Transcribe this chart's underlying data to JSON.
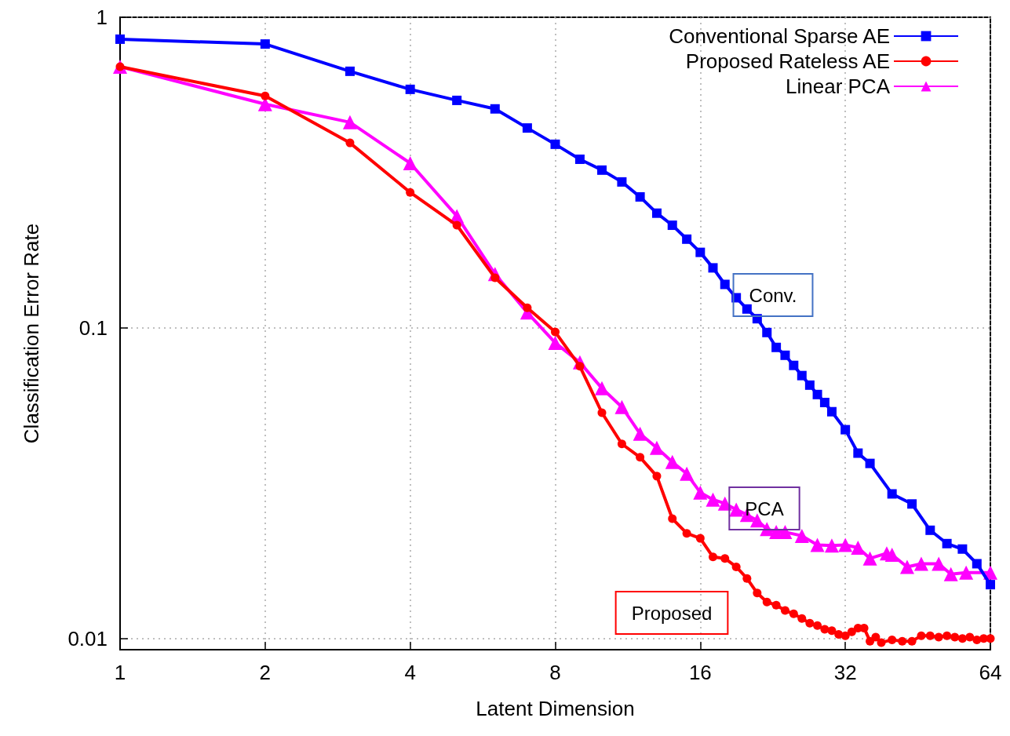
{
  "chart_data": {
    "type": "line",
    "xlabel": "Latent Dimension",
    "ylabel": "Classification Error Rate",
    "log": "xy",
    "grid": true,
    "legend": "top right",
    "line_style": "solid",
    "xlim": [
      1,
      64
    ],
    "xticks": [
      1,
      2,
      4,
      8,
      16,
      32,
      64
    ],
    "ylim": [
      0.0092,
      1
    ],
    "yticks": [
      0.01,
      0.1,
      1
    ],
    "series": [
      {
        "name": "Conventional Sparse AE",
        "color": "#0000ff",
        "marker": "square",
        "x": [
          1,
          2,
          3,
          4,
          5,
          6,
          7,
          8,
          9,
          10,
          11,
          12,
          13,
          14,
          15,
          16,
          17,
          18,
          19,
          20,
          21,
          22,
          23,
          24,
          25,
          26,
          27,
          28,
          29,
          30,
          32,
          34,
          36,
          40,
          44,
          48,
          52,
          56,
          60,
          64
        ],
        "values": [
          0.85,
          0.82,
          0.67,
          0.586,
          0.54,
          0.507,
          0.44,
          0.39,
          0.349,
          0.322,
          0.295,
          0.264,
          0.234,
          0.214,
          0.193,
          0.175,
          0.156,
          0.138,
          0.125,
          0.115,
          0.107,
          0.0966,
          0.0865,
          0.0816,
          0.0757,
          0.0702,
          0.0654,
          0.061,
          0.0575,
          0.0537,
          0.047,
          0.0395,
          0.0366,
          0.0292,
          0.0271,
          0.0223,
          0.0202,
          0.0194,
          0.0174,
          0.0149
        ]
      },
      {
        "name": "Proposed Rateless AE",
        "color": "#ff0000",
        "marker": "circle",
        "x": [
          1,
          2,
          3,
          4,
          5,
          6,
          7,
          8,
          9,
          10,
          11,
          12,
          13,
          14,
          15,
          16,
          17,
          18,
          19,
          20,
          21,
          22,
          23,
          24,
          25,
          26,
          27,
          28,
          29,
          30,
          31,
          32,
          33,
          34,
          35,
          36,
          37,
          38,
          40,
          42,
          44,
          46,
          48,
          50,
          52,
          54,
          56,
          58,
          60,
          62,
          64
        ],
        "values": [
          0.693,
          0.558,
          0.394,
          0.273,
          0.214,
          0.145,
          0.116,
          0.097,
          0.0752,
          0.0533,
          0.0423,
          0.0383,
          0.0333,
          0.0243,
          0.0218,
          0.021,
          0.0183,
          0.0181,
          0.017,
          0.0156,
          0.014,
          0.0131,
          0.0128,
          0.0123,
          0.012,
          0.0116,
          0.0112,
          0.011,
          0.0107,
          0.0106,
          0.0103,
          0.0102,
          0.0105,
          0.0108,
          0.0108,
          0.0098,
          0.0101,
          0.0097,
          0.0099,
          0.0098,
          0.0098,
          0.0102,
          0.0102,
          0.0101,
          0.0102,
          0.0101,
          0.01,
          0.0101,
          0.0099,
          0.01,
          0.01
        ]
      },
      {
        "name": "Linear PCA",
        "color": "#ff00ff",
        "marker": "triangle",
        "x": [
          1,
          2,
          3,
          4,
          5,
          6,
          7,
          8,
          9,
          10,
          11,
          12,
          13,
          14,
          15,
          16,
          17,
          18,
          19,
          20,
          21,
          22,
          23,
          24,
          26,
          28,
          30,
          32,
          34,
          36,
          39,
          40,
          43,
          46,
          50,
          53,
          57,
          64
        ],
        "values": [
          0.693,
          0.525,
          0.459,
          0.339,
          0.229,
          0.149,
          0.112,
          0.0895,
          0.0774,
          0.0639,
          0.0556,
          0.0456,
          0.0411,
          0.037,
          0.0339,
          0.0295,
          0.028,
          0.0272,
          0.026,
          0.025,
          0.024,
          0.0225,
          0.022,
          0.022,
          0.0214,
          0.02,
          0.0199,
          0.02,
          0.0196,
          0.0181,
          0.0188,
          0.0186,
          0.017,
          0.0174,
          0.0174,
          0.0161,
          0.0163,
          0.0163
        ]
      }
    ],
    "annotations": [
      "Conv.",
      "PCA",
      "Proposed"
    ]
  }
}
